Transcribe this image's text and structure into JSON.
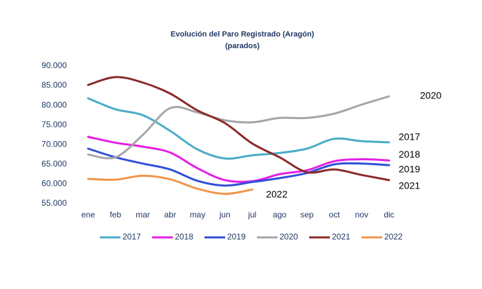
{
  "chart_data": {
    "type": "line",
    "title": "Evolución del Paro Registrado (Aragón)",
    "subtitle": "(parados)",
    "categories": [
      "ene",
      "feb",
      "mar",
      "abr",
      "may",
      "jun",
      "jul",
      "ago",
      "sep",
      "oct",
      "nov",
      "dic"
    ],
    "ylim": [
      55000,
      90000
    ],
    "yticks": [
      {
        "value": 55000,
        "label": "55.000"
      },
      {
        "value": 60000,
        "label": "60.000"
      },
      {
        "value": 65000,
        "label": "65.000"
      },
      {
        "value": 70000,
        "label": "70.000"
      },
      {
        "value": 75000,
        "label": "75.000"
      },
      {
        "value": 80000,
        "label": "80.000"
      },
      {
        "value": 85000,
        "label": "85.000"
      },
      {
        "value": 90000,
        "label": "90.000"
      }
    ],
    "legend": "bottom",
    "series": [
      {
        "name": "2017",
        "color": "#4bacc6",
        "values": [
          81800,
          79000,
          77500,
          73500,
          68800,
          66500,
          67300,
          67900,
          69000,
          71500,
          70900,
          70600
        ]
      },
      {
        "name": "2018",
        "color": "#e61ee6",
        "values": [
          72000,
          70500,
          69500,
          68000,
          64000,
          61000,
          60700,
          62500,
          63500,
          65800,
          66300,
          66000
        ]
      },
      {
        "name": "2019",
        "color": "#3050d8",
        "values": [
          69000,
          66800,
          65200,
          63700,
          60800,
          59600,
          60500,
          61500,
          62800,
          65000,
          65200,
          64800
        ]
      },
      {
        "name": "2020",
        "color": "#a6a6a6",
        "values": [
          67500,
          66800,
          72500,
          79300,
          78200,
          76200,
          75700,
          76800,
          76800,
          77900,
          80200,
          82300
        ]
      },
      {
        "name": "2021",
        "color": "#8b2a2a",
        "values": [
          85200,
          87200,
          85800,
          83000,
          78700,
          75500,
          70300,
          66800,
          63000,
          63700,
          62300,
          61000
        ]
      },
      {
        "name": "2022",
        "color": "#f0954a",
        "values": [
          61300,
          61100,
          62100,
          61200,
          58800,
          57500,
          58600,
          null,
          null,
          null,
          null,
          null
        ]
      }
    ]
  }
}
